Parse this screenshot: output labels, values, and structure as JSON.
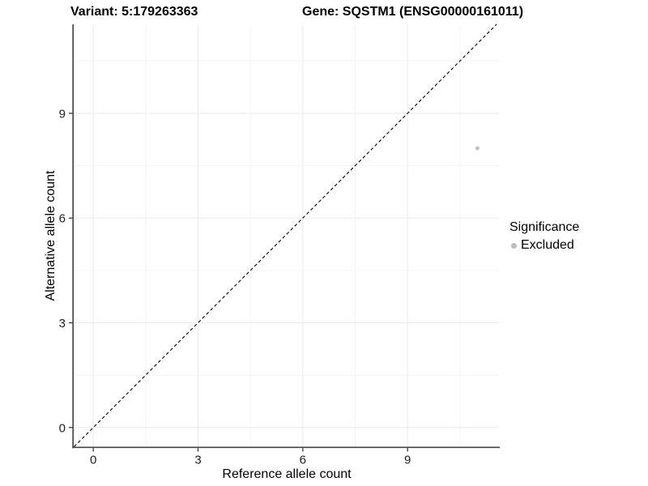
{
  "header": {
    "variant_title": "Variant: 5:179263363",
    "gene_title": "Gene: SQSTM1 (ENSG00000161011)"
  },
  "chart_data": {
    "type": "scatter",
    "title_left": "Variant: 5:179263363",
    "title_right": "Gene: SQSTM1 (ENSG00000161011)",
    "xlabel": "Reference allele count",
    "ylabel": "Alternative allele count",
    "xlim": [
      -0.56,
      11.64
    ],
    "ylim": [
      -0.55,
      11.55
    ],
    "xticks": [
      0,
      3,
      6,
      9
    ],
    "yticks": [
      0,
      3,
      6,
      9
    ],
    "minor_xticks": [
      1.5,
      4.5,
      7.5,
      10.5
    ],
    "minor_yticks": [
      1.5,
      4.5,
      7.5,
      10.5
    ],
    "grid": "major and minor, very light gray, on white panel",
    "reference_line": {
      "type": "identity y=x",
      "slope": 1,
      "intercept": 0,
      "style": "dashed",
      "color": "#000000"
    },
    "series": [
      {
        "name": "Excluded",
        "color": "#bdbdbd",
        "points": [
          {
            "x": 11,
            "y": 8
          }
        ]
      }
    ],
    "legend": {
      "title": "Significance",
      "position": "right",
      "entries": [
        {
          "label": "Excluded",
          "color": "#bdbdbd"
        }
      ]
    },
    "colors": {
      "point": "#bdbdbd",
      "grid_major": "#ebebeb",
      "grid_minor": "#f4f4f4",
      "axis_line": "#454545",
      "tick_mark": "#333333",
      "tick_label": "#212121",
      "dashed_line": "#000000"
    }
  }
}
